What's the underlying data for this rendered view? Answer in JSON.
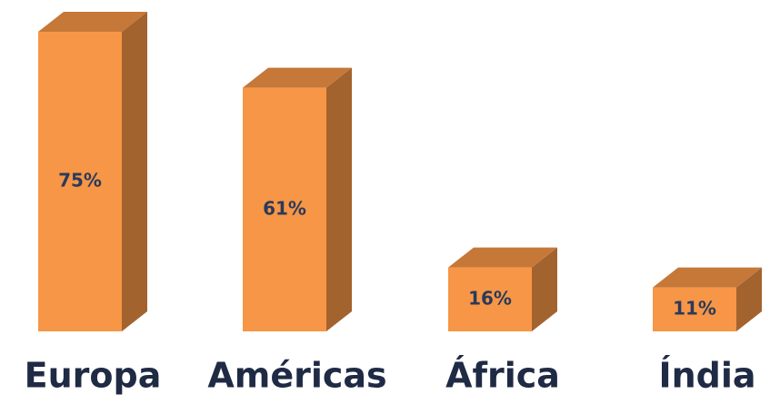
{
  "chart_data": {
    "type": "bar",
    "categories": [
      "Europa",
      "Américas",
      "África",
      "Índia"
    ],
    "values": [
      75,
      61,
      16,
      11
    ],
    "value_labels": [
      "75%",
      "61%",
      "16%",
      "11%"
    ],
    "color": "#f79646"
  }
}
